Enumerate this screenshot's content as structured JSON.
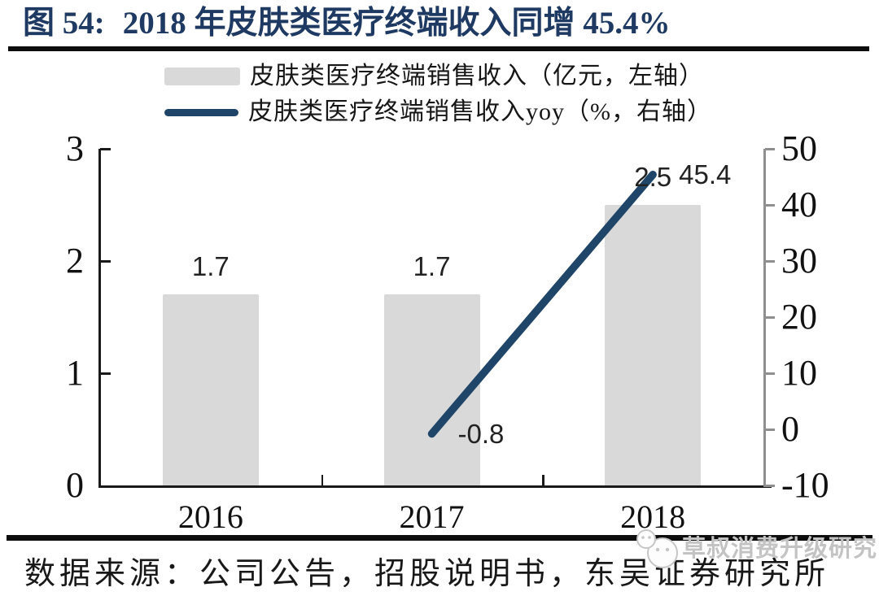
{
  "header": {
    "figure_label": "图 54:",
    "title": "2018 年皮肤类医疗终端收入同增 45.4%"
  },
  "footer": {
    "source": "数据来源：公司公告，招股说明书，东吴证券研究所",
    "watermark": "草叔消费升级研究",
    "watermark_icon": "wechat-bubbles-icon"
  },
  "colors": {
    "title_navy": "#1f3a62",
    "line_navy": "#1f4569",
    "bar_gray": "#d9d9d9",
    "axis_black": "#1a1a1a",
    "right_axis_gray": "#8f8f8f",
    "watermark_gray": "#c3c3c3"
  },
  "chart_data": {
    "type": "combo_bar_line",
    "title": "图 54: 2018 年皮肤类医疗终端收入同增 45.4%",
    "categories": [
      "2016",
      "2017",
      "2018"
    ],
    "series": [
      {
        "name": "皮肤类医疗终端销售收入（亿元，左轴）",
        "type": "bar",
        "axis": "left",
        "values": [
          1.7,
          1.7,
          2.5
        ],
        "data_labels": [
          "1.7",
          "1.7",
          "2.5"
        ],
        "color": "#d9d9d9"
      },
      {
        "name": "皮肤类医疗终端销售收入yoy（%，右轴）",
        "type": "line",
        "axis": "right",
        "values": [
          null,
          -0.8,
          45.4
        ],
        "data_labels": [
          null,
          "-0.8",
          "45.4"
        ],
        "color": "#1f4569"
      }
    ],
    "left_axis": {
      "min": 0,
      "max": 3,
      "ticks": [
        "3",
        "2",
        "1",
        "0"
      ]
    },
    "right_axis": {
      "min": -10,
      "max": 50,
      "ticks": [
        "50",
        "40",
        "30",
        "20",
        "10",
        "0",
        "-10"
      ]
    },
    "grid": false,
    "legend_position": "top-center"
  }
}
